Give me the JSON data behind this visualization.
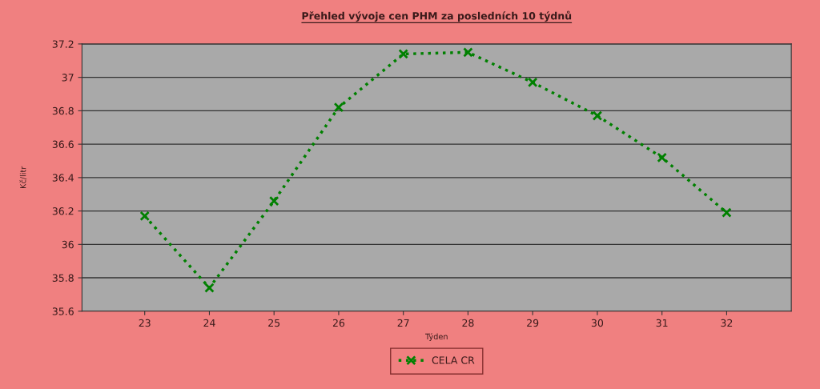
{
  "chart_data": {
    "type": "line",
    "title": "Přehled vývoje cen PHM za posledních 10 týdnů",
    "xlabel": "Týden",
    "ylabel": "Kč/litr",
    "categories": [
      "23",
      "24",
      "25",
      "26",
      "27",
      "28",
      "29",
      "30",
      "31",
      "32"
    ],
    "series": [
      {
        "name": "CELA CR",
        "color": "#008000",
        "values": [
          36.17,
          35.74,
          36.26,
          36.82,
          37.14,
          37.15,
          36.97,
          36.77,
          36.52,
          36.19
        ]
      }
    ],
    "ylim": [
      35.6,
      37.2
    ],
    "yticks": [
      35.6,
      35.8,
      36,
      36.2,
      36.4,
      36.6,
      36.8,
      37,
      37.2
    ],
    "grid": "y",
    "legend": "bottom",
    "marker": "cross",
    "line_style": "dotted"
  }
}
